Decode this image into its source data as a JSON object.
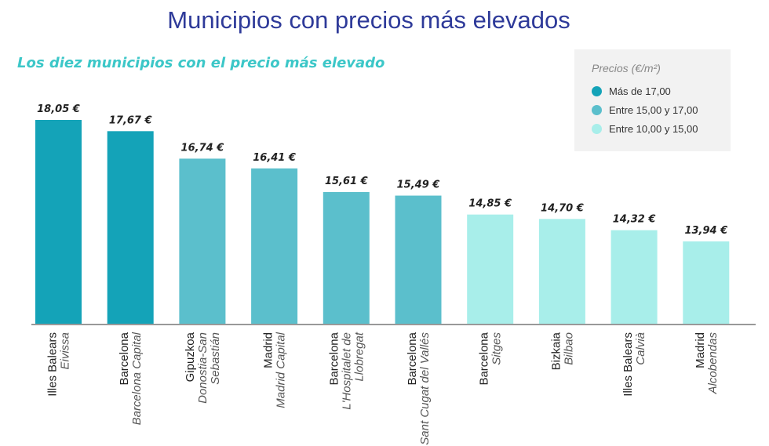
{
  "title": "Municipios con precios más elevados",
  "subtitle": "Los diez municipios con el precio más elevado",
  "legend": {
    "title": "Precios (€/m²)",
    "items": [
      {
        "label": "Más de 17,00",
        "color": "#14a3b8"
      },
      {
        "label": "Entre 15,00 y 17,00",
        "color": "#5bbfcc"
      },
      {
        "label": "Entre 10,00 y 15,00",
        "color": "#a8eeea"
      }
    ]
  },
  "chart_data": {
    "type": "bar",
    "title": "Municipios con precios más elevados",
    "subtitle": "Los diez municipios con el precio más elevado",
    "legend_title": "Precios (€/m²)",
    "legend_position": "top-right",
    "grid": false,
    "categories": [
      {
        "province": "Illes Balears",
        "municipality": "Eivissa"
      },
      {
        "province": "Barcelona",
        "municipality": "Barcelona Capital"
      },
      {
        "province": "Gipuzkoa",
        "municipality": "Donostia-San Sebastián"
      },
      {
        "province": "Madrid",
        "municipality": "Madrid Capital"
      },
      {
        "province": "Barcelona",
        "municipality": "L'Hospitalet de Llobregat"
      },
      {
        "province": "Barcelona",
        "municipality": "Sant Cugat del Vallés"
      },
      {
        "province": "Barcelona",
        "municipality": "Sitges"
      },
      {
        "province": "Bizkaia",
        "municipality": "Bilbao"
      },
      {
        "province": "Illes Balears",
        "municipality": "Calvià"
      },
      {
        "province": "Madrid",
        "municipality": "Alcobendas"
      }
    ],
    "category_label_lines": [
      [
        "Illes Balears",
        "Eivissa"
      ],
      [
        "Barcelona",
        "Barcelona Capital"
      ],
      [
        "Gipuzkoa",
        "Donostia-San",
        "Sebastián"
      ],
      [
        "Madrid",
        "Madrid Capital"
      ],
      [
        "Barcelona",
        "L'Hospitalet de",
        "Llobregat"
      ],
      [
        "Barcelona",
        "Sant Cugat del Vallés"
      ],
      [
        "Barcelona",
        "Sitges"
      ],
      [
        "Bizkaia",
        "Bilbao"
      ],
      [
        "Illes Balears",
        "Calvià"
      ],
      [
        "Madrid",
        "Alcobendas"
      ]
    ],
    "values": [
      18.05,
      17.67,
      16.74,
      16.41,
      15.61,
      15.49,
      14.85,
      14.7,
      14.32,
      13.94
    ],
    "value_labels": [
      "18,05 €",
      "17,67 €",
      "16,74 €",
      "16,41 €",
      "15,61 €",
      "15,49 €",
      "14,85 €",
      "14,70 €",
      "14,32 €",
      "13,94 €"
    ],
    "bar_colors": [
      "#14a3b8",
      "#14a3b8",
      "#5bbfcc",
      "#5bbfcc",
      "#5bbfcc",
      "#5bbfcc",
      "#a8eeea",
      "#a8eeea",
      "#a8eeea",
      "#a8eeea"
    ]
  }
}
